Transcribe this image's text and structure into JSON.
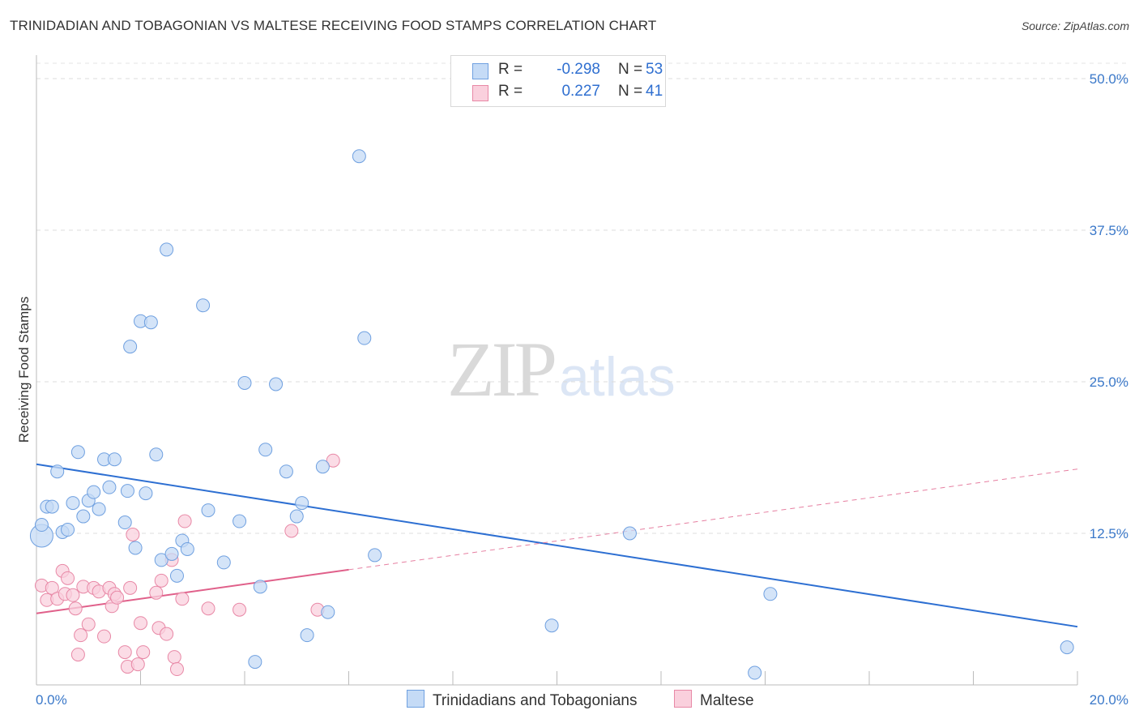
{
  "title": "TRINIDADIAN AND TOBAGONIAN VS MALTESE RECEIVING FOOD STAMPS CORRELATION CHART",
  "source": "Source: ZipAtlas.com",
  "watermark": {
    "zip": "ZIP",
    "atlas": "atlas"
  },
  "legend": {
    "series1": {
      "r_label": "R = ",
      "r_value": "-0.298",
      "n_label": "N = ",
      "n_value": "53",
      "color": "#6fa0e0",
      "fill": "#c5dbf6"
    },
    "series2": {
      "r_label": "R = ",
      "r_value": "0.227",
      "n_label": "N = ",
      "n_value": "41",
      "color": "#e888a6",
      "fill": "#fad0dd"
    }
  },
  "bottom_legend": {
    "series1_label": "Trinidadians and Tobagonians",
    "series2_label": "Maltese"
  },
  "chart_data": {
    "type": "scatter",
    "title": "TRINIDADIAN AND TOBAGONIAN VS MALTESE RECEIVING FOOD STAMPS CORRELATION CHART",
    "xlabel": "",
    "ylabel": "Receiving Food Stamps",
    "xlim": [
      0,
      20
    ],
    "ylim": [
      0,
      50
    ],
    "y_ticks": [
      12.5,
      25.0,
      37.5,
      50.0
    ],
    "y_tick_labels": [
      "12.5%",
      "25.0%",
      "37.5%",
      "50.0%"
    ],
    "x_tick_labels": [
      "0.0%",
      "20.0%"
    ],
    "grid": true,
    "legend_position": "top-center",
    "series": [
      {
        "name": "Trinidadians and Tobagonians",
        "color": "#6fa0e0",
        "fill": "#c5dbf6",
        "trend": {
          "x": [
            0,
            20
          ],
          "y": [
            18.2,
            4.8
          ],
          "color": "#2d6fd2",
          "style": "solid"
        },
        "points": [
          [
            0.1,
            12.3
          ],
          [
            0.1,
            13.2
          ],
          [
            0.2,
            14.7
          ],
          [
            0.3,
            14.7
          ],
          [
            0.4,
            17.6
          ],
          [
            0.5,
            12.6
          ],
          [
            0.6,
            12.8
          ],
          [
            0.7,
            15.0
          ],
          [
            0.8,
            19.2
          ],
          [
            0.9,
            13.9
          ],
          [
            1.0,
            15.2
          ],
          [
            1.1,
            15.9
          ],
          [
            1.2,
            14.5
          ],
          [
            1.3,
            18.6
          ],
          [
            1.4,
            16.3
          ],
          [
            1.5,
            18.6
          ],
          [
            1.7,
            13.4
          ],
          [
            1.75,
            16.0
          ],
          [
            1.8,
            27.9
          ],
          [
            1.9,
            11.3
          ],
          [
            2.0,
            30.0
          ],
          [
            2.1,
            15.8
          ],
          [
            2.2,
            29.9
          ],
          [
            2.3,
            19.0
          ],
          [
            2.4,
            10.3
          ],
          [
            2.5,
            35.9
          ],
          [
            2.6,
            10.8
          ],
          [
            2.7,
            9.0
          ],
          [
            2.8,
            11.9
          ],
          [
            2.9,
            11.2
          ],
          [
            3.2,
            31.3
          ],
          [
            3.3,
            14.4
          ],
          [
            3.6,
            10.1
          ],
          [
            3.9,
            13.5
          ],
          [
            4.0,
            24.9
          ],
          [
            4.2,
            1.9
          ],
          [
            4.3,
            8.1
          ],
          [
            4.4,
            19.4
          ],
          [
            4.6,
            24.8
          ],
          [
            4.8,
            17.6
          ],
          [
            5.0,
            13.9
          ],
          [
            5.1,
            15.0
          ],
          [
            5.2,
            4.1
          ],
          [
            5.5,
            18.0
          ],
          [
            5.6,
            6.0
          ],
          [
            6.2,
            43.6
          ],
          [
            6.3,
            28.6
          ],
          [
            6.5,
            10.7
          ],
          [
            9.9,
            4.9
          ],
          [
            11.4,
            12.5
          ],
          [
            13.8,
            1.0
          ],
          [
            14.1,
            7.5
          ],
          [
            19.8,
            3.1
          ]
        ]
      },
      {
        "name": "Maltese",
        "color": "#e888a6",
        "fill": "#fad0dd",
        "trend": {
          "x": [
            0,
            6.0
          ],
          "y": [
            5.9,
            9.5
          ],
          "color": "#e0608a",
          "style": "solid",
          "extended_to": [
            20,
            17.8
          ]
        },
        "points": [
          [
            0.1,
            8.2
          ],
          [
            0.2,
            7.0
          ],
          [
            0.3,
            8.0
          ],
          [
            0.4,
            7.1
          ],
          [
            0.5,
            9.4
          ],
          [
            0.55,
            7.5
          ],
          [
            0.6,
            8.8
          ],
          [
            0.7,
            7.4
          ],
          [
            0.75,
            6.3
          ],
          [
            0.8,
            2.5
          ],
          [
            0.85,
            4.1
          ],
          [
            0.9,
            8.1
          ],
          [
            1.0,
            5.0
          ],
          [
            1.1,
            8.0
          ],
          [
            1.2,
            7.7
          ],
          [
            1.3,
            4.0
          ],
          [
            1.4,
            8.0
          ],
          [
            1.45,
            6.5
          ],
          [
            1.5,
            7.5
          ],
          [
            1.55,
            7.2
          ],
          [
            1.7,
            2.7
          ],
          [
            1.75,
            1.5
          ],
          [
            1.8,
            8.0
          ],
          [
            1.85,
            12.4
          ],
          [
            1.95,
            1.7
          ],
          [
            2.0,
            5.1
          ],
          [
            2.05,
            2.7
          ],
          [
            2.3,
            7.6
          ],
          [
            2.35,
            4.7
          ],
          [
            2.4,
            8.6
          ],
          [
            2.5,
            4.2
          ],
          [
            2.6,
            10.3
          ],
          [
            2.65,
            2.3
          ],
          [
            2.7,
            1.3
          ],
          [
            2.8,
            7.1
          ],
          [
            2.85,
            13.5
          ],
          [
            3.3,
            6.3
          ],
          [
            3.9,
            6.2
          ],
          [
            4.9,
            12.7
          ],
          [
            5.4,
            6.2
          ],
          [
            5.7,
            18.5
          ]
        ]
      }
    ]
  }
}
